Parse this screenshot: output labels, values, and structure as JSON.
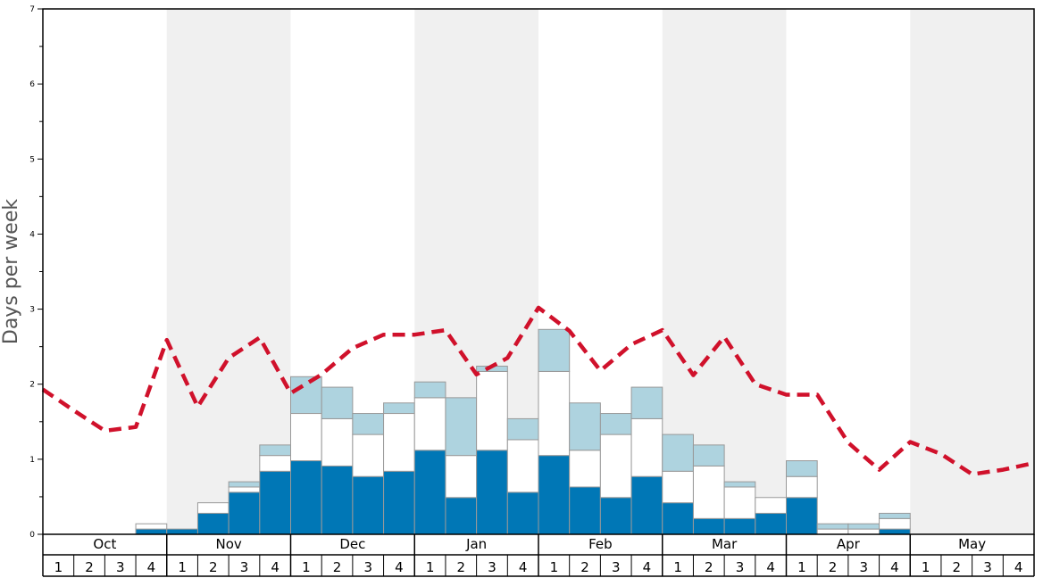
{
  "colors": {
    "bar_bottom": "#0077b6",
    "bar_middle": "#ffffff",
    "bar_top": "#aed3df",
    "bar_stroke": "#999999",
    "line": "#d0112b",
    "band": "#f0f0f0"
  },
  "chart_data": {
    "type": "bar",
    "ylabel": "Days per week",
    "ylim": [
      0,
      7
    ],
    "yticks": [
      0,
      1,
      2,
      3,
      4,
      5,
      6,
      7
    ],
    "months": [
      "Oct",
      "Nov",
      "Dec",
      "Jan",
      "Feb",
      "Mar",
      "Apr",
      "May"
    ],
    "weeks_per_month": [
      "1",
      "2",
      "3",
      "4"
    ],
    "shaded_months": [
      "Nov",
      "Jan",
      "Mar",
      "May"
    ],
    "grid": false,
    "series": [
      {
        "values": [
          0,
          0,
          0,
          0.07,
          0.07,
          0.28,
          0.56,
          0.84,
          0.98,
          0.91,
          0.77,
          0.84,
          1.12,
          0.49,
          1.12,
          0.56,
          1.05,
          0.63,
          0.49,
          0.77,
          0.42,
          0.21,
          0.21,
          0.28,
          0.49,
          0,
          0,
          0.07,
          0,
          0,
          0,
          0
        ]
      },
      {
        "values": [
          0,
          0,
          0,
          0.07,
          0,
          0.14,
          0.07,
          0.21,
          0.63,
          0.63,
          0.56,
          0.77,
          0.7,
          0.56,
          1.05,
          0.7,
          1.12,
          0.49,
          0.84,
          0.77,
          0.42,
          0.7,
          0.42,
          0.21,
          0.28,
          0.07,
          0.07,
          0.14,
          0,
          0,
          0,
          0
        ]
      },
      {
        "values": [
          0,
          0,
          0,
          0,
          0,
          0,
          0.07,
          0.14,
          0.49,
          0.42,
          0.28,
          0.14,
          0.21,
          0.77,
          0.07,
          0.28,
          0.56,
          0.63,
          0.28,
          0.42,
          0.49,
          0.28,
          0.07,
          0,
          0.21,
          0.07,
          0.07,
          0.07,
          0,
          0,
          0,
          0
        ]
      },
      {
        "type": "line",
        "values": [
          1.93,
          1.65,
          1.38,
          1.43,
          2.59,
          1.7,
          2.35,
          2.62,
          1.88,
          2.13,
          2.48,
          2.66,
          2.66,
          2.72,
          2.13,
          2.35,
          3.02,
          2.71,
          2.18,
          2.53,
          2.72,
          2.12,
          2.63,
          2.0,
          1.86,
          1.86,
          1.22,
          0.86,
          1.23,
          1.07,
          0.8,
          0.86,
          0.95
        ]
      }
    ]
  }
}
